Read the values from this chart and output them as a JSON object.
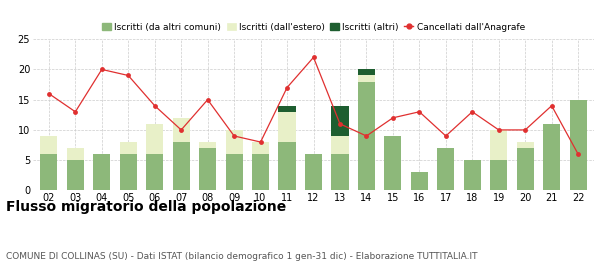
{
  "years": [
    "02",
    "03",
    "04",
    "05",
    "06",
    "07",
    "08",
    "09",
    "10",
    "11",
    "12",
    "13",
    "14",
    "15",
    "16",
    "17",
    "18",
    "19",
    "20",
    "21",
    "22"
  ],
  "iscritti_comuni": [
    6,
    5,
    6,
    6,
    6,
    8,
    7,
    6,
    6,
    8,
    6,
    6,
    18,
    9,
    3,
    7,
    5,
    5,
    7,
    11,
    15
  ],
  "iscritti_estero": [
    3,
    2,
    0,
    2,
    5,
    4,
    1,
    4,
    2,
    5,
    0,
    3,
    1,
    0,
    0,
    0,
    0,
    5,
    1,
    0,
    0
  ],
  "iscritti_altri": [
    0,
    0,
    0,
    0,
    0,
    0,
    0,
    0,
    0,
    1,
    0,
    5,
    1,
    0,
    0,
    0,
    0,
    0,
    0,
    0,
    0
  ],
  "cancellati": [
    16,
    13,
    20,
    19,
    14,
    10,
    15,
    9,
    8,
    17,
    22,
    11,
    9,
    12,
    13,
    9,
    13,
    10,
    10,
    14,
    6
  ],
  "color_comuni": "#8db87a",
  "color_estero": "#e8f0c8",
  "color_altri": "#1e5e30",
  "color_cancellati": "#e03030",
  "legend_labels": [
    "Iscritti (da altri comuni)",
    "Iscritti (dall'estero)",
    "Iscritti (altri)",
    "Cancellati dall'Anagrafe"
  ],
  "ylim": [
    0,
    25
  ],
  "yticks": [
    0,
    5,
    10,
    15,
    20,
    25
  ],
  "title": "Flusso migratorio della popolazione",
  "subtitle": "COMUNE DI COLLINAS (SU) - Dati ISTAT (bilancio demografico 1 gen-31 dic) - Elaborazione TUTTITALIA.IT",
  "title_fontsize": 10,
  "subtitle_fontsize": 6.5
}
